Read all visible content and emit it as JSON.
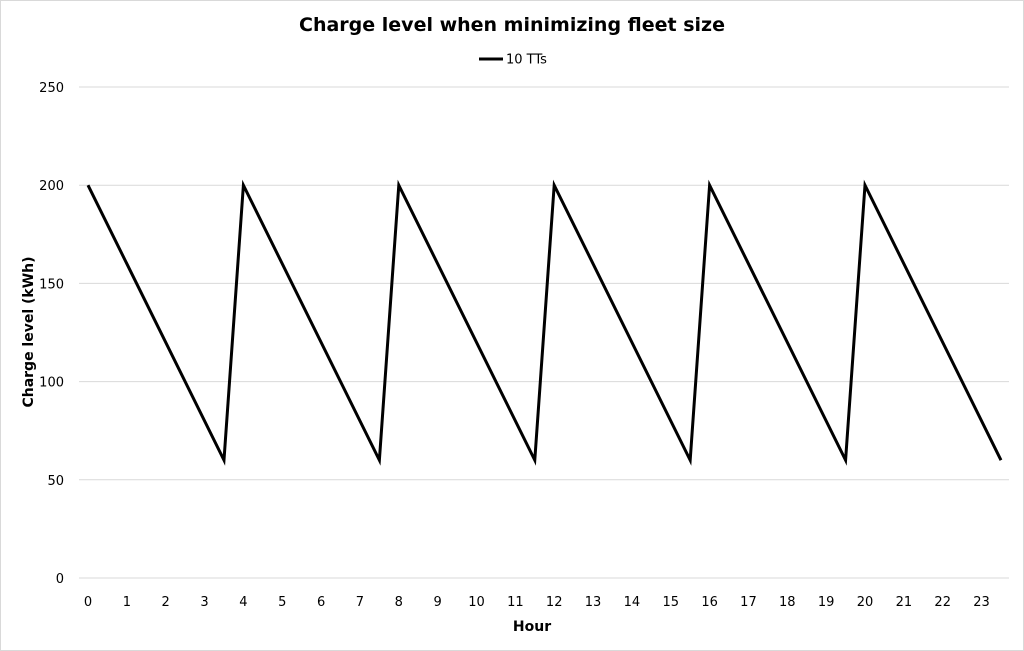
{
  "chart_data": {
    "type": "line",
    "title": "Charge level when minimizing fleet size",
    "xlabel": "Hour",
    "ylabel": "Charge level (kWh)",
    "ylim": [
      0,
      250
    ],
    "yticks": [
      0,
      50,
      100,
      150,
      200,
      250
    ],
    "xlim": [
      0,
      23.5
    ],
    "xticks": [
      0,
      1,
      2,
      3,
      4,
      5,
      6,
      7,
      8,
      9,
      10,
      11,
      12,
      13,
      14,
      15,
      16,
      17,
      18,
      19,
      20,
      21,
      22,
      23
    ],
    "grid": "horizontal",
    "legend_position": "top",
    "series": [
      {
        "name": "10 TTs",
        "color": "#000000",
        "x": [
          0,
          3.5,
          4,
          7.5,
          8,
          11.5,
          12,
          15.5,
          16,
          19.5,
          20,
          23.5
        ],
        "y": [
          200,
          60,
          200,
          60,
          200,
          60,
          200,
          60,
          200,
          60,
          200,
          60
        ]
      }
    ]
  }
}
